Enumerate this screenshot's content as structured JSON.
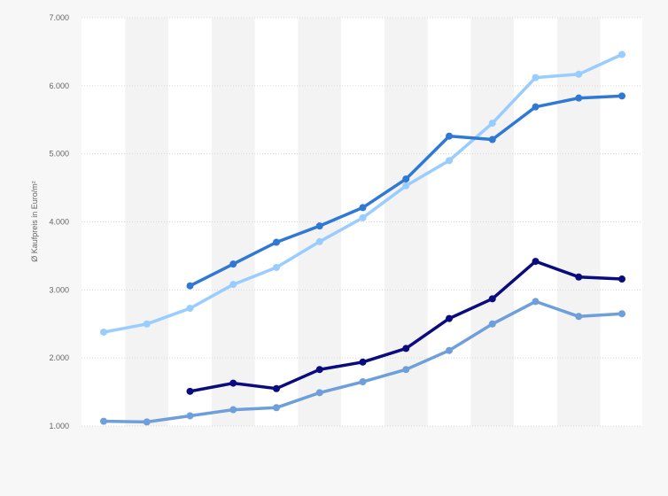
{
  "chart_data": {
    "type": "line",
    "title": "",
    "xlabel": "",
    "ylabel": "Ø Kaufpreis in Euro/m²",
    "ylim": [
      1000,
      7000
    ],
    "yticks": [
      1000,
      2000,
      3000,
      4000,
      5000,
      6000,
      7000
    ],
    "ytick_labels": [
      "1.000",
      "2.000",
      "3.000",
      "4.000",
      "5.000",
      "6.000",
      "7.000"
    ],
    "grid": true,
    "x": [
      0,
      1,
      2,
      3,
      4,
      5,
      6,
      7,
      8,
      9,
      10,
      11,
      12
    ],
    "series": [
      {
        "color": "#99ccff",
        "values": [
          2380,
          2500,
          2730,
          3080,
          3330,
          3710,
          4060,
          4530,
          4900,
          5450,
          6120,
          6170,
          6460
        ]
      },
      {
        "color": "#2f78d6",
        "values": [
          null,
          null,
          3060,
          3380,
          3700,
          3940,
          4210,
          4630,
          5260,
          5210,
          5690,
          5820,
          5850
        ]
      },
      {
        "color": "#0b0b80",
        "values": [
          null,
          null,
          1510,
          1630,
          1550,
          1830,
          1940,
          2140,
          2580,
          2870,
          3420,
          3190,
          3160
        ]
      },
      {
        "color": "#6e9fdb",
        "values": [
          1070,
          1060,
          1150,
          1240,
          1270,
          1490,
          1650,
          1830,
          2110,
          2500,
          2830,
          2610,
          2650
        ]
      }
    ]
  }
}
